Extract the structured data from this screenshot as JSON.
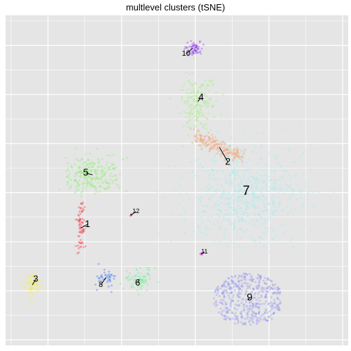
{
  "chart_data": {
    "type": "scatter",
    "title": "multlevel clusters (tSNE)",
    "xlabel": "",
    "ylabel": "",
    "grid": true,
    "axis_ticks_shown": false,
    "legend": "none",
    "clusters": [
      {
        "label": "1",
        "color": "#f0323c",
        "center": [
          -55,
          -14
        ],
        "spread": [
          1.2,
          10
        ],
        "n": 70,
        "shape": "streak",
        "label_at": [
          -51,
          -12
        ],
        "label_size": 14
      },
      {
        "label": "2",
        "color": "#f0a070",
        "center": [
          28,
          30
        ],
        "spread": [
          9,
          6
        ],
        "n": 200,
        "shape": "band",
        "label_at": [
          33,
          22
        ],
        "label_size": 14
      },
      {
        "label": "3",
        "color": "#f5f032",
        "center": [
          -84,
          -45
        ],
        "spread": [
          3,
          4
        ],
        "n": 70,
        "shape": "blob",
        "label_at": [
          -82,
          -42
        ],
        "label_size": 13
      },
      {
        "label": "4",
        "color": "#a0f07a",
        "center": [
          15,
          55
        ],
        "spread": [
          5,
          9
        ],
        "n": 200,
        "shape": "blob",
        "label_at": [
          17,
          57
        ],
        "label_size": 14
      },
      {
        "label": "5",
        "color": "#86f06a",
        "center": [
          -48,
          15
        ],
        "spread": [
          8,
          5
        ],
        "n": 250,
        "shape": "blob",
        "label_at": [
          -52,
          16
        ],
        "label_size": 14
      },
      {
        "label": "6",
        "color": "#6cf090",
        "center": [
          -20,
          -42
        ],
        "spread": [
          4,
          4
        ],
        "n": 80,
        "shape": "blob",
        "label_at": [
          -21,
          -44
        ],
        "label_size": 13
      },
      {
        "label": "7",
        "color": "#9aeef0",
        "center": [
          43,
          4
        ],
        "spread": [
          17,
          13
        ],
        "n": 650,
        "shape": "blob",
        "label_at": [
          44,
          6
        ],
        "label_size": 18
      },
      {
        "label": "8",
        "color": "#3a6cf0",
        "center": [
          -40,
          -41
        ],
        "spread": [
          3,
          3
        ],
        "n": 40,
        "shape": "blob",
        "label_at": [
          -43,
          -45
        ],
        "label_size": 11
      },
      {
        "label": "9",
        "color": "#8c8cf0",
        "center": [
          45,
          -53
        ],
        "spread": [
          13,
          9
        ],
        "n": 450,
        "shape": "disc",
        "label_at": [
          46,
          -52
        ],
        "label_size": 15
      },
      {
        "label": "10",
        "color": "#8c32f0",
        "center": [
          12,
          84
        ],
        "spread": [
          3,
          2
        ],
        "n": 60,
        "shape": "blob",
        "label_at": [
          8,
          81
        ],
        "label_size": 11
      },
      {
        "label": "11",
        "color": "#c800c8",
        "center": [
          17,
          -28
        ],
        "spread": [
          0.4,
          0.4
        ],
        "n": 5,
        "shape": "blob",
        "label_at": [
          19,
          -27
        ],
        "label_size": 9
      },
      {
        "label": "12",
        "color": "#c8143c",
        "center": [
          -25,
          -7
        ],
        "spread": [
          0.4,
          0.5
        ],
        "n": 5,
        "shape": "blob",
        "label_at": [
          -22,
          -5
        ],
        "label_size": 9
      }
    ],
    "xlim": [
      -100,
      105
    ],
    "ylim": [
      -78,
      102
    ]
  }
}
